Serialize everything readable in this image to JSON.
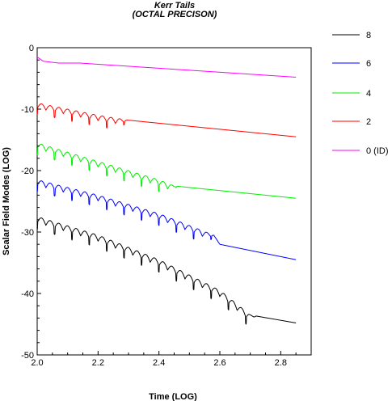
{
  "chart_data": {
    "type": "line",
    "title": "Kerr Tails",
    "subtitle": "(OCTAL PRECISON)",
    "xlabel": "Time (LOG)",
    "ylabel": "Scalar Field Modes (LOG)",
    "xlim": [
      2.0,
      2.9
    ],
    "ylim": [
      -50,
      0
    ],
    "x_ticks": [
      "2.0",
      "2.2",
      "2.4",
      "2.6",
      "2.8"
    ],
    "y_ticks": [
      "0",
      "-10",
      "-20",
      "-30",
      "-40",
      "-50"
    ],
    "grid": false,
    "legend_position": "right",
    "series": [
      {
        "name": "8",
        "color": "#000000",
        "base": [
          [
            2.0,
            -27.5
          ],
          [
            2.2,
            -30.5
          ],
          [
            2.4,
            -34.5
          ],
          [
            2.6,
            -39.5
          ],
          [
            2.7,
            -43.5
          ],
          [
            2.85,
            -44.8
          ]
        ],
        "osc_end": 2.72,
        "amp": 1.8
      },
      {
        "name": "6",
        "color": "#0000ff",
        "base": [
          [
            2.0,
            -21.5
          ],
          [
            2.2,
            -24.0
          ],
          [
            2.4,
            -27.0
          ],
          [
            2.58,
            -30.5
          ],
          [
            2.6,
            -32.0
          ],
          [
            2.85,
            -34.5
          ]
        ],
        "osc_end": 2.585,
        "amp": 1.7
      },
      {
        "name": "4",
        "color": "#00ee00",
        "base": [
          [
            2.0,
            -15.5
          ],
          [
            2.2,
            -18.5
          ],
          [
            2.4,
            -21.5
          ],
          [
            2.45,
            -22.5
          ],
          [
            2.85,
            -24.5
          ]
        ],
        "osc_end": 2.46,
        "amp": 1.7
      },
      {
        "name": "2",
        "color": "#ff0000",
        "base": [
          [
            2.0,
            -9.0
          ],
          [
            2.2,
            -11.0
          ],
          [
            2.3,
            -11.8
          ],
          [
            2.85,
            -14.5
          ]
        ],
        "osc_end": 2.3,
        "amp": 1.6
      },
      {
        "name": "0 (ID)",
        "color": "#ff00ff",
        "base": [
          [
            2.0,
            -1.5
          ],
          [
            2.02,
            -2.2
          ],
          [
            2.07,
            -2.5
          ],
          [
            2.14,
            -2.5
          ],
          [
            2.85,
            -4.8
          ]
        ],
        "osc_end": 2.0,
        "amp": 0
      }
    ]
  }
}
